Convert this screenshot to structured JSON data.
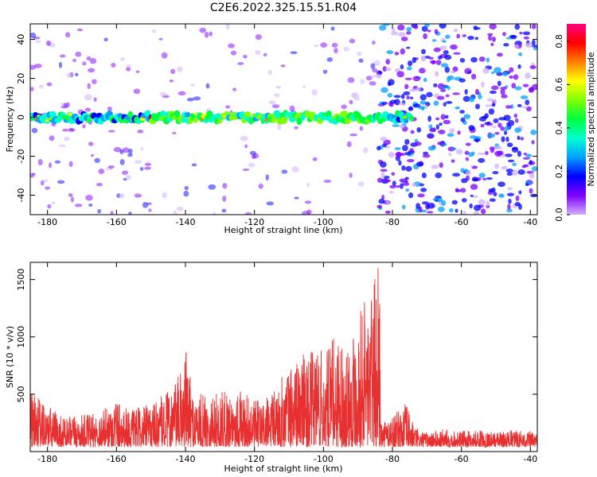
{
  "title": "C2E6.2022.325.15.51.R04",
  "chart_data": [
    {
      "type": "heatmap",
      "xlabel": "Height of straight line (km)",
      "ylabel": "Frequency (Hz)",
      "xlim": [
        -185,
        -38
      ],
      "ylim": [
        -50,
        48
      ],
      "xticks": [
        -180,
        -160,
        -140,
        -120,
        -100,
        -80,
        -60,
        -40
      ],
      "yticks": [
        -40,
        -20,
        0,
        20,
        40
      ],
      "colorbar": {
        "label": "Normalized spectral amplitude",
        "range": [
          0.0,
          0.88
        ],
        "ticks": [
          "0.0",
          "0.2",
          "0.4",
          "0.6",
          "0.8"
        ],
        "colormap": [
          "#d0b0ff",
          "#8000ff",
          "#0000ff",
          "#00a0ff",
          "#00ffd0",
          "#00ff40",
          "#80ff00",
          "#ffff00",
          "#ff8000",
          "#ff0000",
          "#ff0080"
        ]
      },
      "features": {
        "band_frequency_hz": 0,
        "band_x_range": [
          -185,
          -74
        ],
        "noise_floor_change_at": -84
      }
    },
    {
      "type": "line",
      "xlabel": "Height of straight line (km)",
      "ylabel": "SNR (10 * v/v)",
      "xlim": [
        -185,
        -38
      ],
      "ylim": [
        0,
        1650
      ],
      "xticks": [
        -180,
        -160,
        -140,
        -120,
        -100,
        -80,
        -60,
        -40
      ],
      "yticks": [
        500,
        1000,
        1500
      ],
      "line_color": "#e83030",
      "envelope": {
        "x": [
          -185,
          -175,
          -165,
          -160,
          -156,
          -150,
          -145,
          -142,
          -140,
          -138,
          -135,
          -130,
          -125,
          -120,
          -115,
          -112,
          -110,
          -106,
          -104,
          -102,
          -100,
          -98,
          -96,
          -94,
          -92,
          -90,
          -88,
          -86,
          -85,
          -84,
          -83.5,
          -83,
          -82,
          -78,
          -76,
          -74,
          -72,
          -70,
          -65,
          -60,
          -55,
          -50,
          -45,
          -40,
          -38
        ],
        "y": [
          520,
          300,
          340,
          480,
          360,
          420,
          530,
          660,
          940,
          520,
          500,
          520,
          560,
          440,
          500,
          660,
          750,
          860,
          820,
          1050,
          830,
          940,
          1100,
          880,
          1100,
          1200,
          1380,
          1430,
          1520,
          1630,
          1300,
          230,
          300,
          360,
          430,
          250,
          180,
          170,
          200,
          180,
          190,
          170,
          190,
          180,
          160
        ]
      }
    }
  ]
}
